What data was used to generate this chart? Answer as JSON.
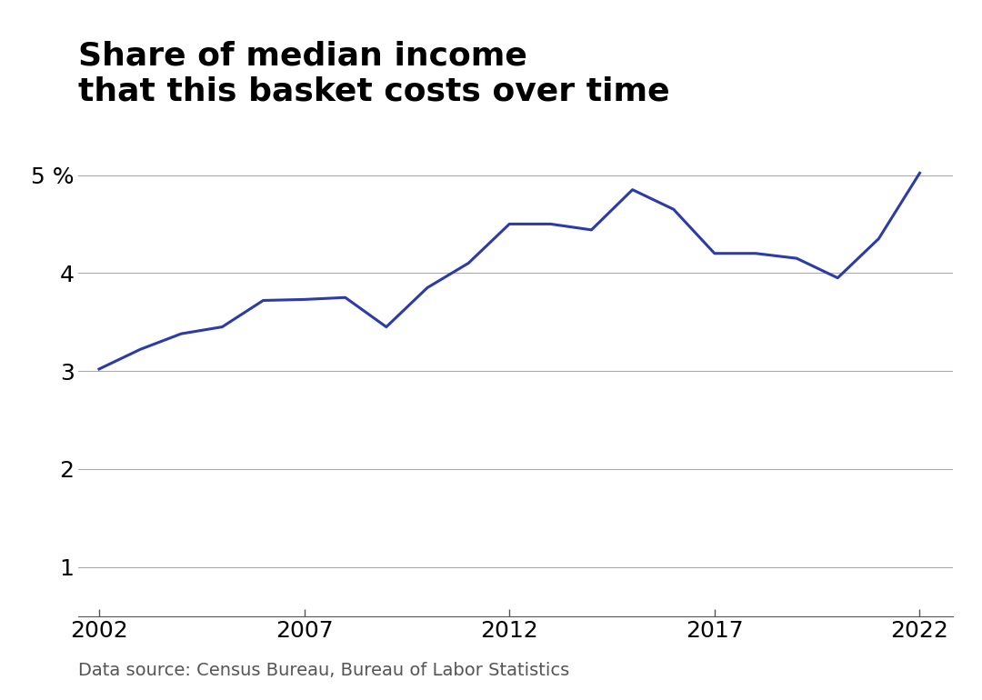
{
  "title_line1": "Share of median income",
  "title_line2": "that this basket costs over time",
  "source": "Data source: Census Bureau, Bureau of Labor Statistics",
  "line_color": "#2d3aaa",
  "line_width": 2.2,
  "background_color": "#ffffff",
  "years": [
    2002,
    2003,
    2004,
    2005,
    2006,
    2007,
    2008,
    2009,
    2010,
    2011,
    2012,
    2013,
    2014,
    2015,
    2016,
    2017,
    2018,
    2019,
    2020,
    2021,
    2022
  ],
  "values": [
    3.02,
    3.22,
    3.38,
    3.45,
    3.72,
    3.73,
    3.75,
    3.45,
    3.85,
    4.1,
    4.5,
    4.5,
    4.44,
    4.85,
    4.65,
    4.2,
    4.2,
    4.15,
    3.95,
    4.35,
    5.02
  ],
  "yticks": [
    1,
    2,
    3,
    4,
    5
  ],
  "xticks": [
    2002,
    2007,
    2012,
    2017,
    2022
  ],
  "ylim": [
    0.5,
    5.5
  ],
  "xlim": [
    2001.5,
    2022.8
  ],
  "title_fontsize": 26,
  "tick_fontsize": 18,
  "source_fontsize": 14,
  "grid_color": "#aaaaaa",
  "tick_color": "#555555"
}
